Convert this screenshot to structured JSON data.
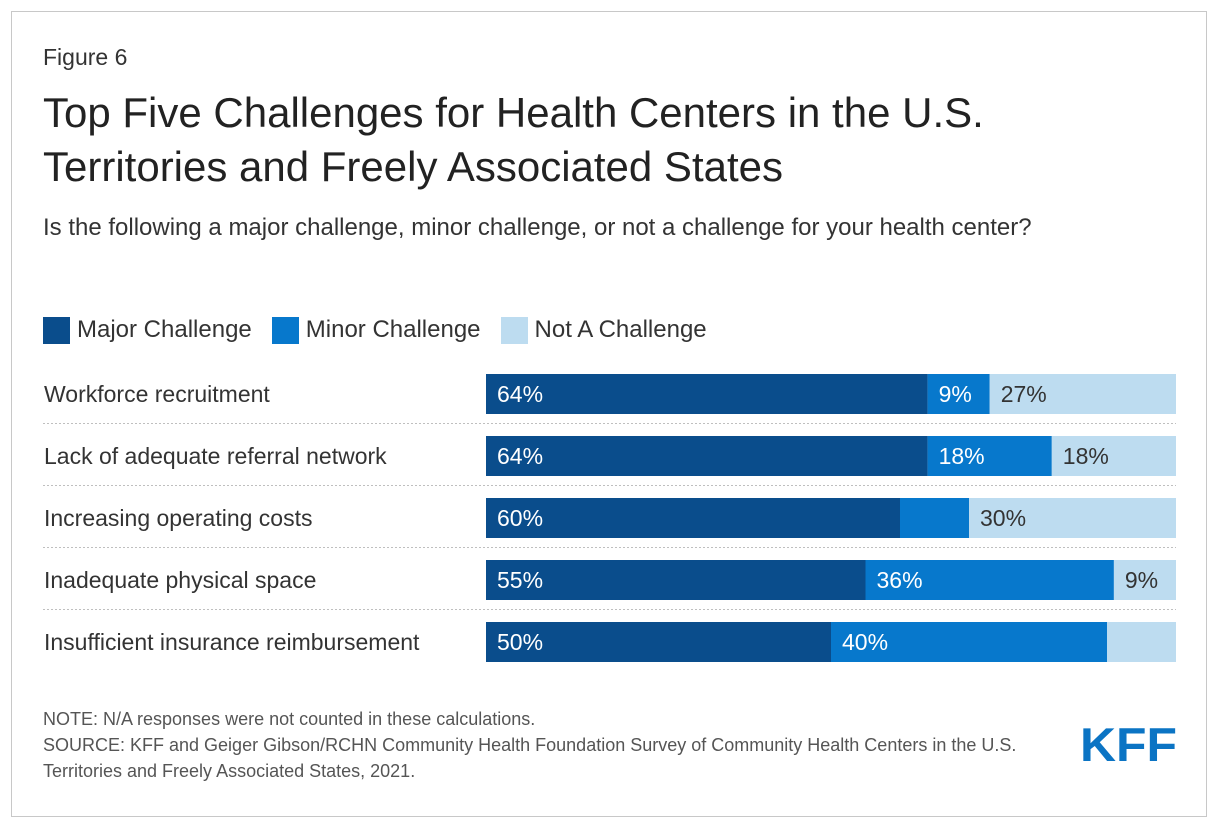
{
  "figure_label": "Figure 6",
  "title": "Top Five Challenges for Health Centers in the U.S. Territories and Freely Associated States",
  "subtitle": "Is the following a major challenge, minor challenge, or not a challenge for your health center?",
  "colors": {
    "major": "#0a4d8c",
    "minor": "#0778cc",
    "not": "#bddcf0",
    "divider": "#bfbfbf"
  },
  "chart_data": {
    "type": "bar",
    "orientation": "horizontal",
    "stacked": true,
    "categories": [
      "Workforce recruitment",
      "Lack of adequate referral network",
      "Increasing operating costs",
      "Inadequate physical space",
      "Insufficient insurance reimbursement"
    ],
    "series": [
      {
        "name": "Major Challenge",
        "values": [
          64,
          64,
          60,
          55,
          50
        ],
        "labels": [
          "64%",
          "64%",
          "60%",
          "55%",
          "50%"
        ]
      },
      {
        "name": "Minor Challenge",
        "values": [
          9,
          18,
          10,
          36,
          40
        ],
        "labels": [
          "9%",
          "18%",
          "",
          "36%",
          "40%"
        ]
      },
      {
        "name": "Not A Challenge",
        "values": [
          27,
          18,
          30,
          9,
          10
        ],
        "labels": [
          "27%",
          "18%",
          "30%",
          "9%",
          ""
        ]
      }
    ],
    "xlim": [
      0,
      100
    ],
    "legend": "top-left"
  },
  "footer": {
    "note": "NOTE: N/A responses were not counted in these calculations.",
    "source": "SOURCE: KFF and Geiger Gibson/RCHN Community Health Foundation Survey of Community Health Centers in the U.S. Territories and Freely Associated States, 2021."
  },
  "logo": {
    "text": "KFF",
    "color": "#0b74c4"
  }
}
